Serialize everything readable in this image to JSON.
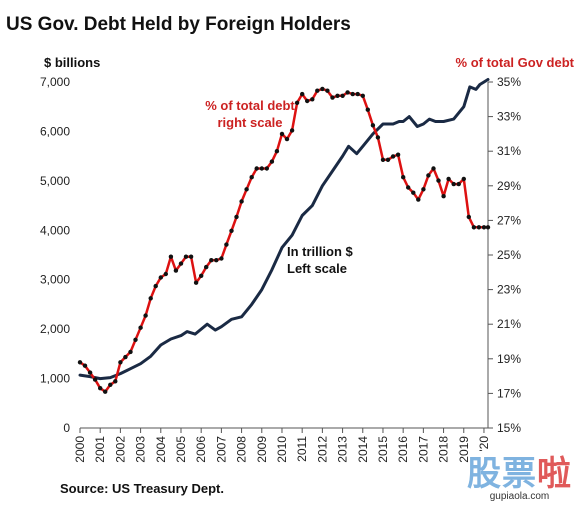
{
  "chart_data": {
    "type": "line",
    "title": "US Gov. Debt Held by Foreign Holders",
    "left_axis_label": "$ billions",
    "right_axis_label": "% of total Gov debt",
    "x_ticks": [
      "2000",
      "2001",
      "2002",
      "2003",
      "2004",
      "2005",
      "2006",
      "2007",
      "2008",
      "2009",
      "2010",
      "2011",
      "2012",
      "2013",
      "2014",
      "2015",
      "2016",
      "2017",
      "2018",
      "2019",
      "'20"
    ],
    "y_left_ticks": [
      "0",
      "1,000",
      "2,000",
      "3,000",
      "4,000",
      "5,000",
      "6,000",
      "7,000"
    ],
    "y_right_ticks": [
      "15%",
      "17%",
      "19%",
      "21%",
      "23%",
      "25%",
      "27%",
      "29%",
      "31%",
      "33%",
      "35%"
    ],
    "xlim": [
      2000,
      2020.2
    ],
    "ylim_left": [
      0,
      7000
    ],
    "ylim_right": [
      15,
      35
    ],
    "grid": false,
    "series": [
      {
        "name": "In trillion $ Left scale",
        "axis": "left",
        "color": "#1a2a44",
        "x": [
          2000,
          2000.5,
          2001,
          2001.5,
          2002,
          2002.5,
          2003,
          2003.5,
          2004,
          2004.5,
          2005,
          2005.3,
          2005.7,
          2006,
          2006.3,
          2006.7,
          2007,
          2007.5,
          2008,
          2008.5,
          2009,
          2009.5,
          2010,
          2010.5,
          2011,
          2011.5,
          2012,
          2012.5,
          2013,
          2013.3,
          2013.7,
          2014,
          2014.5,
          2015,
          2015.5,
          2015.8,
          2016,
          2016.3,
          2016.7,
          2017,
          2017.3,
          2017.6,
          2018,
          2018.5,
          2019,
          2019.3,
          2019.6,
          2019.8,
          2020,
          2020.2
        ],
        "values": [
          1070,
          1040,
          1000,
          1020,
          1100,
          1200,
          1300,
          1450,
          1680,
          1800,
          1870,
          1950,
          1900,
          2000,
          2100,
          1980,
          2050,
          2200,
          2250,
          2500,
          2800,
          3200,
          3650,
          3900,
          4300,
          4500,
          4900,
          5200,
          5500,
          5700,
          5550,
          5700,
          5950,
          6150,
          6150,
          6200,
          6200,
          6300,
          6100,
          6150,
          6250,
          6200,
          6200,
          6250,
          6500,
          6900,
          6850,
          6950,
          7000,
          7050
        ]
      },
      {
        "name": "% of total debt right scale",
        "axis": "right",
        "color": "#dd1111",
        "x": [
          2000,
          2000.25,
          2000.5,
          2000.75,
          2001,
          2001.25,
          2001.5,
          2001.75,
          2002,
          2002.25,
          2002.5,
          2002.75,
          2003,
          2003.25,
          2003.5,
          2003.75,
          2004,
          2004.25,
          2004.5,
          2004.75,
          2005,
          2005.25,
          2005.5,
          2005.75,
          2006,
          2006.25,
          2006.5,
          2006.75,
          2007,
          2007.25,
          2007.5,
          2007.75,
          2008,
          2008.25,
          2008.5,
          2008.75,
          2009,
          2009.25,
          2009.5,
          2009.75,
          2010,
          2010.25,
          2010.5,
          2010.75,
          2011,
          2011.25,
          2011.5,
          2011.75,
          2012,
          2012.25,
          2012.5,
          2012.75,
          2013,
          2013.25,
          2013.5,
          2013.75,
          2014,
          2014.25,
          2014.5,
          2014.75,
          2015,
          2015.25,
          2015.5,
          2015.75,
          2016,
          2016.25,
          2016.5,
          2016.75,
          2017,
          2017.25,
          2017.5,
          2017.75,
          2018,
          2018.25,
          2018.5,
          2018.75,
          2019,
          2019.25,
          2019.5,
          2019.75,
          2020,
          2020.2
        ],
        "values": [
          18.8,
          18.6,
          18.2,
          17.8,
          17.3,
          17.1,
          17.5,
          17.7,
          18.8,
          19.1,
          19.4,
          20.1,
          20.8,
          21.5,
          22.5,
          23.2,
          23.7,
          23.9,
          24.9,
          24.1,
          24.5,
          24.9,
          24.9,
          23.4,
          23.8,
          24.3,
          24.7,
          24.7,
          24.8,
          25.6,
          26.4,
          27.2,
          28.1,
          28.8,
          29.5,
          30.0,
          30.0,
          30.0,
          30.4,
          31.0,
          32.0,
          31.7,
          32.2,
          33.8,
          34.3,
          33.9,
          34.0,
          34.5,
          34.6,
          34.5,
          34.1,
          34.2,
          34.2,
          34.4,
          34.3,
          34.3,
          34.2,
          33.4,
          32.5,
          31.8,
          30.5,
          30.5,
          30.7,
          30.8,
          29.5,
          28.9,
          28.6,
          28.2,
          28.8,
          29.6,
          30.0,
          29.3,
          28.4,
          29.4,
          29.1,
          29.1,
          29.4,
          27.2,
          26.6,
          26.6,
          26.6,
          26.6
        ]
      }
    ]
  },
  "annotations": {
    "red_label_line1": "% of total debt",
    "red_label_line2": "right scale",
    "black_label_line1": "In trillion $",
    "black_label_line2": "Left scale"
  },
  "source": "Source: US Treasury Dept.",
  "watermark": {
    "mark": "股票啦",
    "url": "gupiaola.com"
  }
}
